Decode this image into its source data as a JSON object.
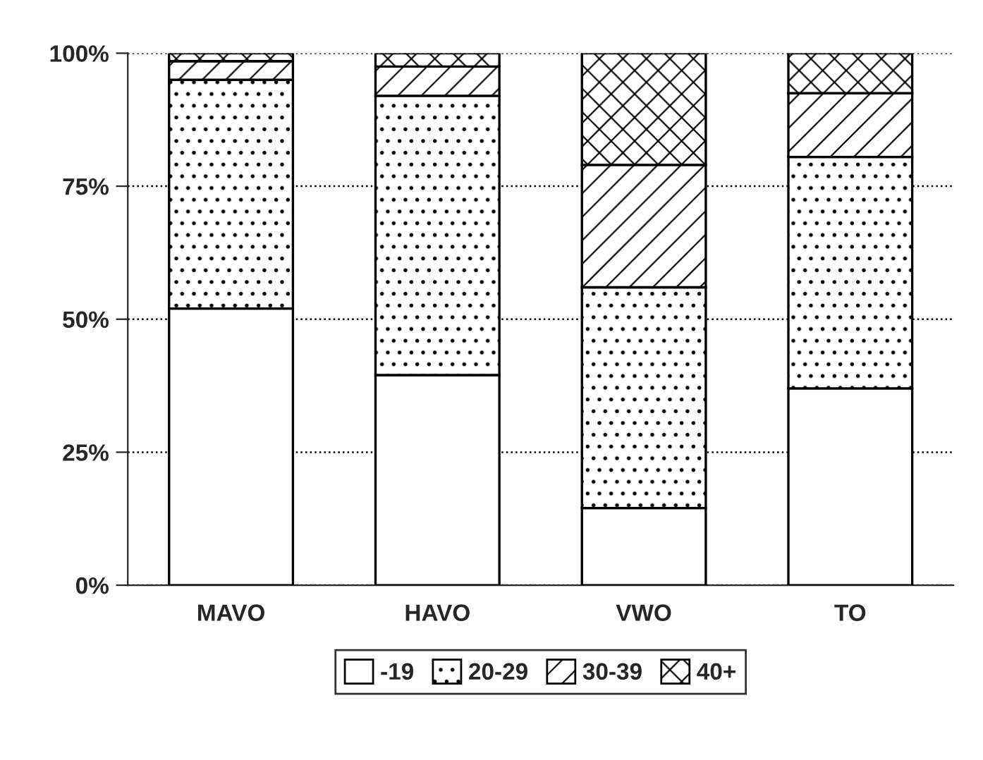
{
  "chart_data": {
    "type": "bar",
    "stacked": true,
    "categories": [
      "MAVO",
      "HAVO",
      "VWO",
      "TO"
    ],
    "series": [
      {
        "name": "-19",
        "color": "#ffffff",
        "values": [
          52,
          39.5,
          14.5,
          37
        ]
      },
      {
        "name": "20-29",
        "color": "#000000",
        "values": [
          43,
          52.5,
          41.5,
          43.5
        ]
      },
      {
        "name": "30-39",
        "color": "#000000",
        "values": [
          3.5,
          5.5,
          23,
          12
        ]
      },
      {
        "name": "40+",
        "color": "#000000",
        "values": [
          1.5,
          2.5,
          21,
          7.5
        ]
      }
    ],
    "ylim": [
      0,
      100
    ],
    "yticks": [
      {
        "value": 0,
        "label": "0%"
      },
      {
        "value": 25,
        "label": "25%"
      },
      {
        "value": 50,
        "label": "50%"
      },
      {
        "value": 75,
        "label": "75%"
      },
      {
        "value": 100,
        "label": "100%"
      }
    ],
    "grid": "y",
    "legend": "bottom"
  }
}
